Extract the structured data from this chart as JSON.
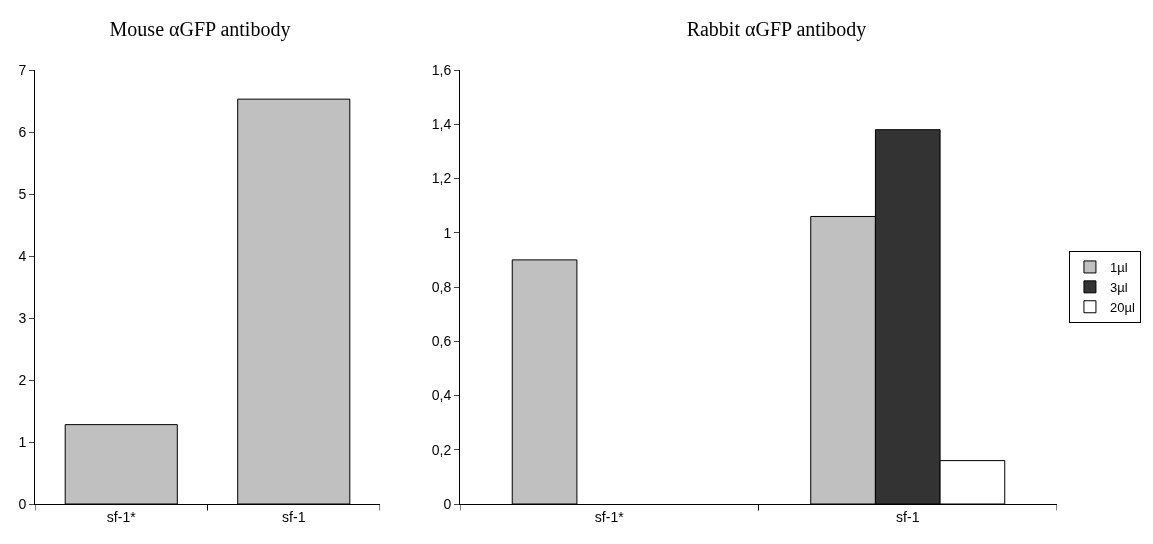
{
  "chart_data": [
    {
      "type": "bar",
      "title": "Mouse αGFP antibody",
      "categories": [
        "sf-1*",
        "sf-1"
      ],
      "series": [
        {
          "color": "#c0c0c0",
          "values": [
            1.28,
            6.53
          ]
        }
      ],
      "ylim": [
        0,
        7
      ],
      "yticks": [
        0,
        1,
        2,
        3,
        4,
        5,
        6,
        7
      ],
      "grid": false,
      "legend": false
    },
    {
      "type": "bar",
      "title": "Rabbit αGFP antibody",
      "categories": [
        "sf-1*",
        "sf-1"
      ],
      "series": [
        {
          "name": "1µl",
          "color": "#c0c0c0",
          "values": [
            0.9,
            1.06
          ]
        },
        {
          "name": "3µl",
          "color": "#333333",
          "values": [
            null,
            1.38
          ]
        },
        {
          "name": "20µl",
          "color": "#ffffff",
          "values": [
            null,
            0.16
          ]
        }
      ],
      "ylim": [
        0,
        1.6
      ],
      "yticks": [
        0,
        {
          "value": 0.2,
          "label": "0,2"
        },
        {
          "value": 0.4,
          "label": "0,4"
        },
        {
          "value": 0.6,
          "label": "0,6"
        },
        {
          "value": 0.8,
          "label": "0,8"
        },
        1,
        {
          "value": 1.2,
          "label": "1,2"
        },
        {
          "value": 1.4,
          "label": "1,4"
        },
        {
          "value": 1.6,
          "label": "1,6"
        }
      ],
      "grid": false,
      "legend": "right"
    }
  ]
}
